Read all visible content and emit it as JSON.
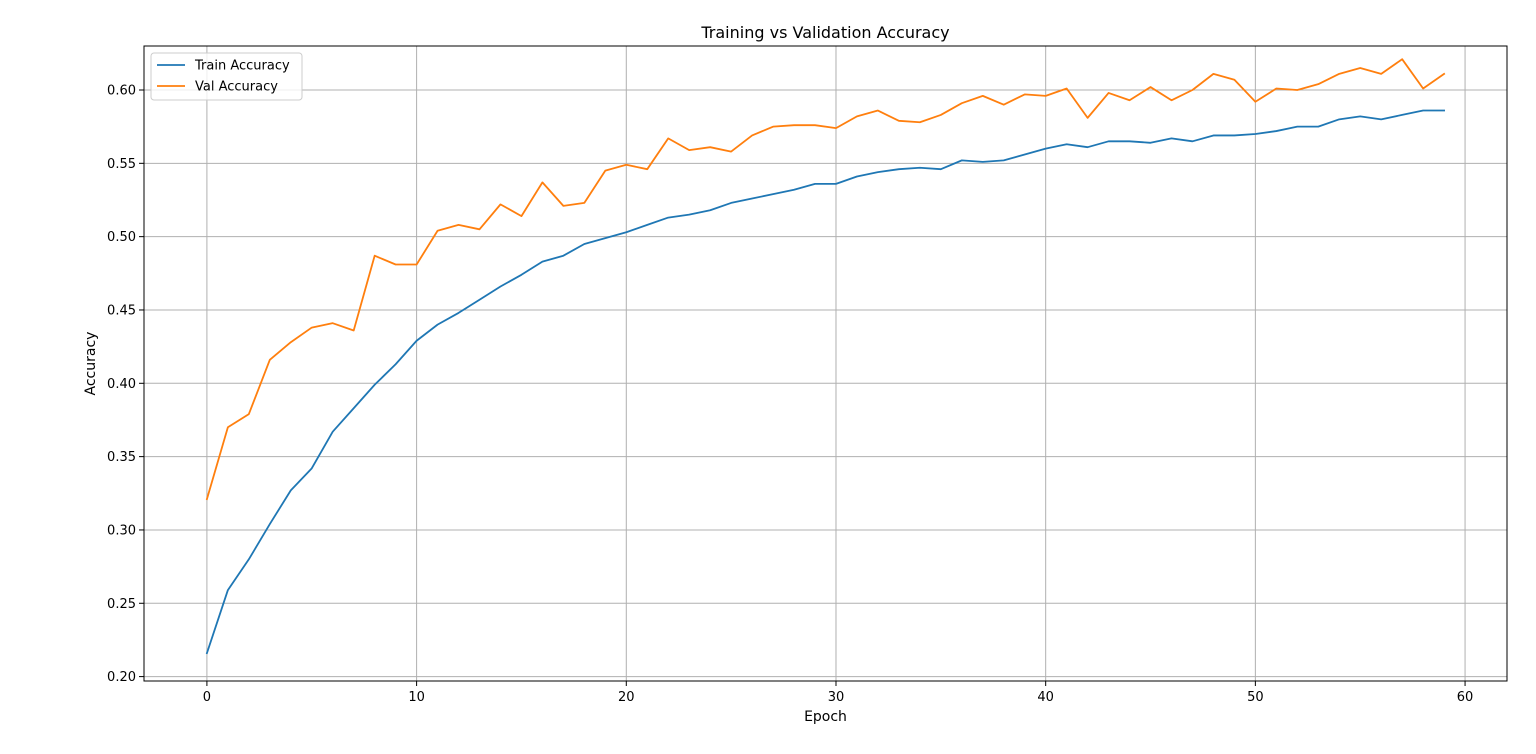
{
  "chart_data": {
    "type": "line",
    "title": "Training vs Validation Accuracy",
    "xlabel": "Epoch",
    "ylabel": "Accuracy",
    "xlim": [
      -3,
      62
    ],
    "ylim": [
      0.197,
      0.63
    ],
    "xticks": [
      0,
      10,
      20,
      30,
      40,
      50,
      60
    ],
    "yticks": [
      0.2,
      0.25,
      0.3,
      0.35,
      0.4,
      0.45,
      0.5,
      0.55,
      0.6
    ],
    "ytick_labels": [
      "0.20",
      "0.25",
      "0.30",
      "0.35",
      "0.40",
      "0.45",
      "0.50",
      "0.55",
      "0.60"
    ],
    "grid": true,
    "legend_position": "upper-left",
    "x": [
      0,
      1,
      2,
      3,
      4,
      5,
      6,
      7,
      8,
      9,
      10,
      11,
      12,
      13,
      14,
      15,
      16,
      17,
      18,
      19,
      20,
      21,
      22,
      23,
      24,
      25,
      26,
      27,
      28,
      29,
      30,
      31,
      32,
      33,
      34,
      35,
      36,
      37,
      38,
      39,
      40,
      41,
      42,
      43,
      44,
      45,
      46,
      47,
      48,
      49,
      50,
      51,
      52,
      53,
      54,
      55,
      56,
      57,
      58,
      59
    ],
    "series": [
      {
        "name": "Train Accuracy",
        "color": "#1f77b4",
        "values": [
          0.216,
          0.259,
          0.28,
          0.304,
          0.327,
          0.342,
          0.367,
          0.383,
          0.399,
          0.413,
          0.429,
          0.44,
          0.448,
          0.457,
          0.466,
          0.474,
          0.483,
          0.487,
          0.495,
          0.499,
          0.503,
          0.508,
          0.513,
          0.515,
          0.518,
          0.523,
          0.526,
          0.529,
          0.532,
          0.536,
          0.536,
          0.541,
          0.544,
          0.546,
          0.547,
          0.546,
          0.552,
          0.551,
          0.552,
          0.556,
          0.56,
          0.563,
          0.561,
          0.565,
          0.565,
          0.564,
          0.567,
          0.565,
          0.569,
          0.569,
          0.57,
          0.572,
          0.575,
          0.575,
          0.58,
          0.582,
          0.58,
          0.583,
          0.586,
          0.586
        ]
      },
      {
        "name": "Val Accuracy",
        "color": "#ff7f0e",
        "values": [
          0.321,
          0.37,
          0.379,
          0.416,
          0.428,
          0.438,
          0.441,
          0.436,
          0.487,
          0.481,
          0.481,
          0.504,
          0.508,
          0.505,
          0.522,
          0.514,
          0.537,
          0.521,
          0.523,
          0.545,
          0.549,
          0.546,
          0.567,
          0.559,
          0.561,
          0.558,
          0.569,
          0.575,
          0.576,
          0.576,
          0.574,
          0.582,
          0.586,
          0.579,
          0.578,
          0.583,
          0.591,
          0.596,
          0.59,
          0.597,
          0.596,
          0.601,
          0.581,
          0.598,
          0.593,
          0.602,
          0.593,
          0.6,
          0.611,
          0.607,
          0.592,
          0.601,
          0.6,
          0.604,
          0.611,
          0.615,
          0.611,
          0.621,
          0.601,
          0.611
        ]
      }
    ]
  }
}
